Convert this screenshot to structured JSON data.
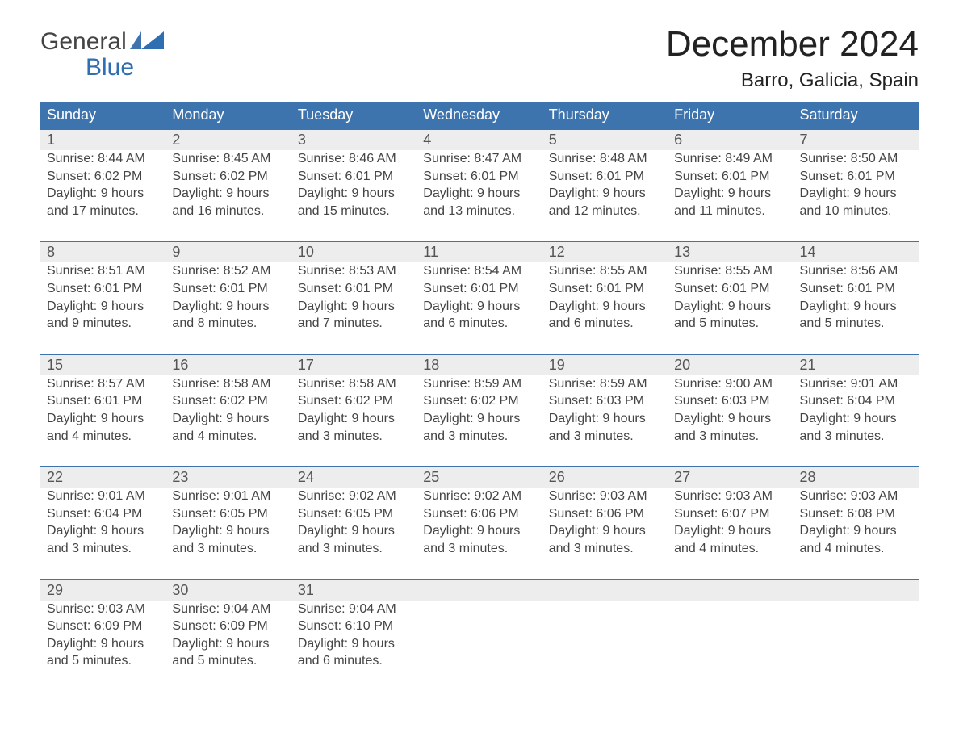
{
  "brand": {
    "line1": "General",
    "line2": "Blue"
  },
  "title": "December 2024",
  "location": "Barro, Galicia, Spain",
  "colors": {
    "header_bg": "#3d74ad",
    "header_fg": "#ffffff",
    "daynum_bg": "#ededed",
    "row_border": "#3d74ad",
    "text": "#444444",
    "title": "#222222"
  },
  "day_headers": [
    "Sunday",
    "Monday",
    "Tuesday",
    "Wednesday",
    "Thursday",
    "Friday",
    "Saturday"
  ],
  "weeks": [
    [
      {
        "n": "1",
        "sr": "Sunrise: 8:44 AM",
        "ss": "Sunset: 6:02 PM",
        "d1": "Daylight: 9 hours",
        "d2": "and 17 minutes."
      },
      {
        "n": "2",
        "sr": "Sunrise: 8:45 AM",
        "ss": "Sunset: 6:02 PM",
        "d1": "Daylight: 9 hours",
        "d2": "and 16 minutes."
      },
      {
        "n": "3",
        "sr": "Sunrise: 8:46 AM",
        "ss": "Sunset: 6:01 PM",
        "d1": "Daylight: 9 hours",
        "d2": "and 15 minutes."
      },
      {
        "n": "4",
        "sr": "Sunrise: 8:47 AM",
        "ss": "Sunset: 6:01 PM",
        "d1": "Daylight: 9 hours",
        "d2": "and 13 minutes."
      },
      {
        "n": "5",
        "sr": "Sunrise: 8:48 AM",
        "ss": "Sunset: 6:01 PM",
        "d1": "Daylight: 9 hours",
        "d2": "and 12 minutes."
      },
      {
        "n": "6",
        "sr": "Sunrise: 8:49 AM",
        "ss": "Sunset: 6:01 PM",
        "d1": "Daylight: 9 hours",
        "d2": "and 11 minutes."
      },
      {
        "n": "7",
        "sr": "Sunrise: 8:50 AM",
        "ss": "Sunset: 6:01 PM",
        "d1": "Daylight: 9 hours",
        "d2": "and 10 minutes."
      }
    ],
    [
      {
        "n": "8",
        "sr": "Sunrise: 8:51 AM",
        "ss": "Sunset: 6:01 PM",
        "d1": "Daylight: 9 hours",
        "d2": "and 9 minutes."
      },
      {
        "n": "9",
        "sr": "Sunrise: 8:52 AM",
        "ss": "Sunset: 6:01 PM",
        "d1": "Daylight: 9 hours",
        "d2": "and 8 minutes."
      },
      {
        "n": "10",
        "sr": "Sunrise: 8:53 AM",
        "ss": "Sunset: 6:01 PM",
        "d1": "Daylight: 9 hours",
        "d2": "and 7 minutes."
      },
      {
        "n": "11",
        "sr": "Sunrise: 8:54 AM",
        "ss": "Sunset: 6:01 PM",
        "d1": "Daylight: 9 hours",
        "d2": "and 6 minutes."
      },
      {
        "n": "12",
        "sr": "Sunrise: 8:55 AM",
        "ss": "Sunset: 6:01 PM",
        "d1": "Daylight: 9 hours",
        "d2": "and 6 minutes."
      },
      {
        "n": "13",
        "sr": "Sunrise: 8:55 AM",
        "ss": "Sunset: 6:01 PM",
        "d1": "Daylight: 9 hours",
        "d2": "and 5 minutes."
      },
      {
        "n": "14",
        "sr": "Sunrise: 8:56 AM",
        "ss": "Sunset: 6:01 PM",
        "d1": "Daylight: 9 hours",
        "d2": "and 5 minutes."
      }
    ],
    [
      {
        "n": "15",
        "sr": "Sunrise: 8:57 AM",
        "ss": "Sunset: 6:01 PM",
        "d1": "Daylight: 9 hours",
        "d2": "and 4 minutes."
      },
      {
        "n": "16",
        "sr": "Sunrise: 8:58 AM",
        "ss": "Sunset: 6:02 PM",
        "d1": "Daylight: 9 hours",
        "d2": "and 4 minutes."
      },
      {
        "n": "17",
        "sr": "Sunrise: 8:58 AM",
        "ss": "Sunset: 6:02 PM",
        "d1": "Daylight: 9 hours",
        "d2": "and 3 minutes."
      },
      {
        "n": "18",
        "sr": "Sunrise: 8:59 AM",
        "ss": "Sunset: 6:02 PM",
        "d1": "Daylight: 9 hours",
        "d2": "and 3 minutes."
      },
      {
        "n": "19",
        "sr": "Sunrise: 8:59 AM",
        "ss": "Sunset: 6:03 PM",
        "d1": "Daylight: 9 hours",
        "d2": "and 3 minutes."
      },
      {
        "n": "20",
        "sr": "Sunrise: 9:00 AM",
        "ss": "Sunset: 6:03 PM",
        "d1": "Daylight: 9 hours",
        "d2": "and 3 minutes."
      },
      {
        "n": "21",
        "sr": "Sunrise: 9:01 AM",
        "ss": "Sunset: 6:04 PM",
        "d1": "Daylight: 9 hours",
        "d2": "and 3 minutes."
      }
    ],
    [
      {
        "n": "22",
        "sr": "Sunrise: 9:01 AM",
        "ss": "Sunset: 6:04 PM",
        "d1": "Daylight: 9 hours",
        "d2": "and 3 minutes."
      },
      {
        "n": "23",
        "sr": "Sunrise: 9:01 AM",
        "ss": "Sunset: 6:05 PM",
        "d1": "Daylight: 9 hours",
        "d2": "and 3 minutes."
      },
      {
        "n": "24",
        "sr": "Sunrise: 9:02 AM",
        "ss": "Sunset: 6:05 PM",
        "d1": "Daylight: 9 hours",
        "d2": "and 3 minutes."
      },
      {
        "n": "25",
        "sr": "Sunrise: 9:02 AM",
        "ss": "Sunset: 6:06 PM",
        "d1": "Daylight: 9 hours",
        "d2": "and 3 minutes."
      },
      {
        "n": "26",
        "sr": "Sunrise: 9:03 AM",
        "ss": "Sunset: 6:06 PM",
        "d1": "Daylight: 9 hours",
        "d2": "and 3 minutes."
      },
      {
        "n": "27",
        "sr": "Sunrise: 9:03 AM",
        "ss": "Sunset: 6:07 PM",
        "d1": "Daylight: 9 hours",
        "d2": "and 4 minutes."
      },
      {
        "n": "28",
        "sr": "Sunrise: 9:03 AM",
        "ss": "Sunset: 6:08 PM",
        "d1": "Daylight: 9 hours",
        "d2": "and 4 minutes."
      }
    ],
    [
      {
        "n": "29",
        "sr": "Sunrise: 9:03 AM",
        "ss": "Sunset: 6:09 PM",
        "d1": "Daylight: 9 hours",
        "d2": "and 5 minutes."
      },
      {
        "n": "30",
        "sr": "Sunrise: 9:04 AM",
        "ss": "Sunset: 6:09 PM",
        "d1": "Daylight: 9 hours",
        "d2": "and 5 minutes."
      },
      {
        "n": "31",
        "sr": "Sunrise: 9:04 AM",
        "ss": "Sunset: 6:10 PM",
        "d1": "Daylight: 9 hours",
        "d2": "and 6 minutes."
      },
      null,
      null,
      null,
      null
    ]
  ]
}
